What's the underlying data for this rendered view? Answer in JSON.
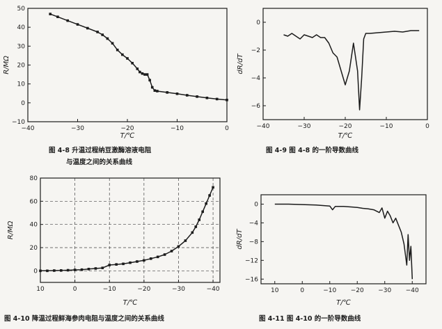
{
  "chart_data": [
    {
      "id": "fig48",
      "type": "line",
      "ylabel": "R/MΩ",
      "xlabel": "T/℃",
      "xlim": [
        -40,
        0
      ],
      "ylim": [
        -10,
        50
      ],
      "xticks": [
        -40,
        -30,
        -20,
        -10,
        0
      ],
      "yticks": [
        -10,
        0,
        10,
        20,
        30,
        40,
        50
      ],
      "grid": false,
      "markers": true,
      "caption_lines": [
        "图 4-8   升温过程纳豆激酶溶液电阻",
        "与温度之间的关系曲线"
      ],
      "series": [
        {
          "x": [
            -35.5,
            -34,
            -32,
            -30,
            -28,
            -26,
            -25,
            -24,
            -23,
            -22,
            -21,
            -20,
            -19,
            -18,
            -17.5,
            -17,
            -16.5,
            -16,
            -15.5,
            -15,
            -14.5,
            -14,
            -12,
            -10,
            -8,
            -6,
            -4,
            -2,
            0
          ],
          "y": [
            47,
            45.5,
            43.5,
            41.5,
            39.5,
            37.5,
            36,
            34,
            31.5,
            28,
            25.5,
            23.5,
            21,
            18,
            16.3,
            15.5,
            15,
            15,
            12,
            8.2,
            6.5,
            6.2,
            5.5,
            4.8,
            4,
            3.3,
            2.6,
            2,
            1.5
          ]
        }
      ]
    },
    {
      "id": "fig49",
      "type": "line",
      "ylabel": "dR/dT",
      "xlabel": "T/℃",
      "xlim": [
        -40,
        0
      ],
      "ylim": [
        -7,
        1
      ],
      "xticks": [
        -40,
        -30,
        -20,
        -10,
        0
      ],
      "yticks": [
        -6,
        -4,
        -2,
        0
      ],
      "grid": false,
      "markers": false,
      "caption_lines": [
        "图 4-9   图 4-8 的一阶导数曲线"
      ],
      "series": [
        {
          "x": [
            -35,
            -34,
            -33,
            -32,
            -31,
            -30,
            -29,
            -28,
            -27,
            -26,
            -25,
            -24,
            -23,
            -22,
            -21,
            -20,
            -19,
            -18,
            -17,
            -16.5,
            -16,
            -15.5,
            -15,
            -14,
            -12,
            -10,
            -8,
            -6,
            -4,
            -2
          ],
          "y": [
            -0.9,
            -1.0,
            -0.8,
            -1.0,
            -1.2,
            -0.9,
            -1.0,
            -1.1,
            -0.9,
            -1.1,
            -1.1,
            -1.5,
            -2.2,
            -2.5,
            -3.5,
            -4.5,
            -3.5,
            -1.5,
            -3.5,
            -6.3,
            -4,
            -1.2,
            -0.8,
            -0.8,
            -0.75,
            -0.7,
            -0.65,
            -0.7,
            -0.6,
            -0.6
          ]
        }
      ]
    },
    {
      "id": "fig410",
      "type": "line",
      "ylabel": "R/MΩ",
      "xlabel": "T/℃",
      "xlim": [
        10,
        -42
      ],
      "ylim": [
        -10,
        80
      ],
      "xticks": [
        10,
        0,
        -10,
        -20,
        -30,
        -40
      ],
      "yticks": [
        0,
        20,
        40,
        60,
        80
      ],
      "grid": true,
      "markers": true,
      "caption_lines": [
        "图 4-10   降温过程鲜海参肉电阻与温度之间的关系曲线"
      ],
      "series": [
        {
          "x": [
            10,
            8,
            6,
            4,
            2,
            0,
            -2,
            -4,
            -6,
            -8,
            -10,
            -12,
            -14,
            -16,
            -18,
            -20,
            -22,
            -24,
            -26,
            -28,
            -30,
            -32,
            -34,
            -35,
            -36,
            -37,
            -38,
            -39,
            -40
          ],
          "y": [
            0,
            0,
            0.2,
            0.3,
            0.5,
            0.8,
            1,
            1.5,
            2,
            2.5,
            5,
            5.5,
            6,
            7,
            8,
            9,
            10.5,
            12,
            14,
            17,
            21,
            26,
            33,
            38,
            44,
            51,
            58,
            65,
            72
          ]
        }
      ]
    },
    {
      "id": "fig411",
      "type": "line",
      "ylabel": "dR/dT",
      "xlabel": "T/℃",
      "xlim": [
        15,
        -45
      ],
      "ylim": [
        -17,
        2
      ],
      "xticks": [
        10,
        0,
        -10,
        -20,
        -30,
        -40
      ],
      "yticks": [
        -16,
        -12,
        -8,
        -4,
        0
      ],
      "grid": false,
      "markers": false,
      "caption_lines": [
        "图 4-11   图 4-10 的一阶导数曲线"
      ],
      "series": [
        {
          "x": [
            10,
            5,
            0,
            -5,
            -10,
            -11,
            -12,
            -15,
            -20,
            -22,
            -24,
            -26,
            -28,
            -29,
            -30,
            -31,
            -32,
            -33,
            -34,
            -35,
            -36,
            -37,
            -38,
            -38.5,
            -39,
            -39.5,
            -40
          ],
          "y": [
            0,
            0,
            -0.1,
            -0.2,
            -0.4,
            -1.2,
            -0.5,
            -0.5,
            -0.7,
            -0.9,
            -1.0,
            -1.2,
            -1.8,
            -0.8,
            -3.0,
            -1.5,
            -2.5,
            -4.0,
            -3.0,
            -4.5,
            -6.0,
            -8.5,
            -13,
            -6.5,
            -12,
            -9,
            -16
          ]
        }
      ]
    }
  ]
}
